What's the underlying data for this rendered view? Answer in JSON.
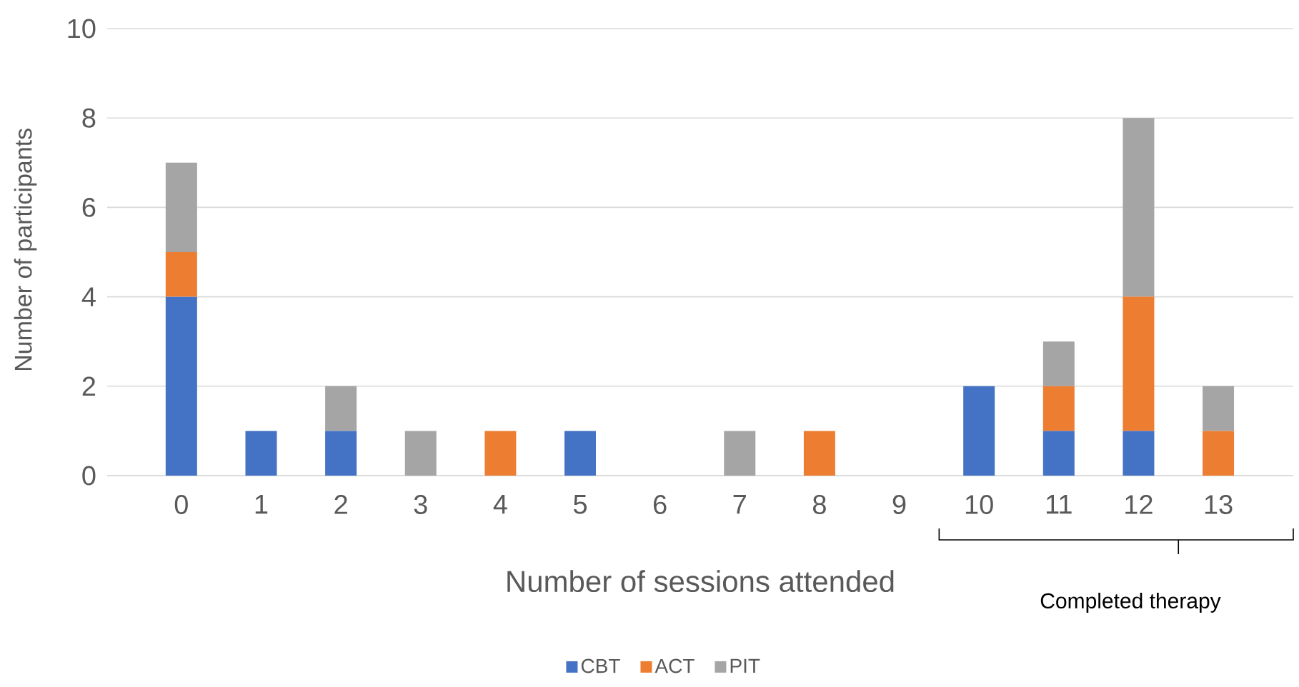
{
  "chart_data": {
    "type": "bar",
    "stacked": true,
    "xlabel": "Number of sessions attended",
    "ylabel": "Number of participants",
    "categories": [
      "0",
      "1",
      "2",
      "3",
      "4",
      "5",
      "6",
      "7",
      "8",
      "9",
      "10",
      "11",
      "12",
      "13"
    ],
    "series": [
      {
        "name": "CBT",
        "color": "#4472c4",
        "values": [
          4,
          1,
          1,
          0,
          0,
          1,
          0,
          0,
          0,
          0,
          2,
          1,
          1,
          0
        ]
      },
      {
        "name": "ACT",
        "color": "#ed7d31",
        "values": [
          1,
          0,
          0,
          0,
          1,
          0,
          0,
          0,
          1,
          0,
          0,
          1,
          3,
          1
        ]
      },
      {
        "name": "PIT",
        "color": "#a5a5a5",
        "values": [
          2,
          0,
          1,
          1,
          0,
          0,
          0,
          1,
          0,
          0,
          0,
          1,
          4,
          1
        ]
      }
    ],
    "ylim": [
      0,
      10
    ],
    "yticks": [
      0,
      2,
      4,
      6,
      8,
      10
    ],
    "grid": "y",
    "legend": "bottom",
    "annotations": [
      "Completed therapy"
    ]
  }
}
